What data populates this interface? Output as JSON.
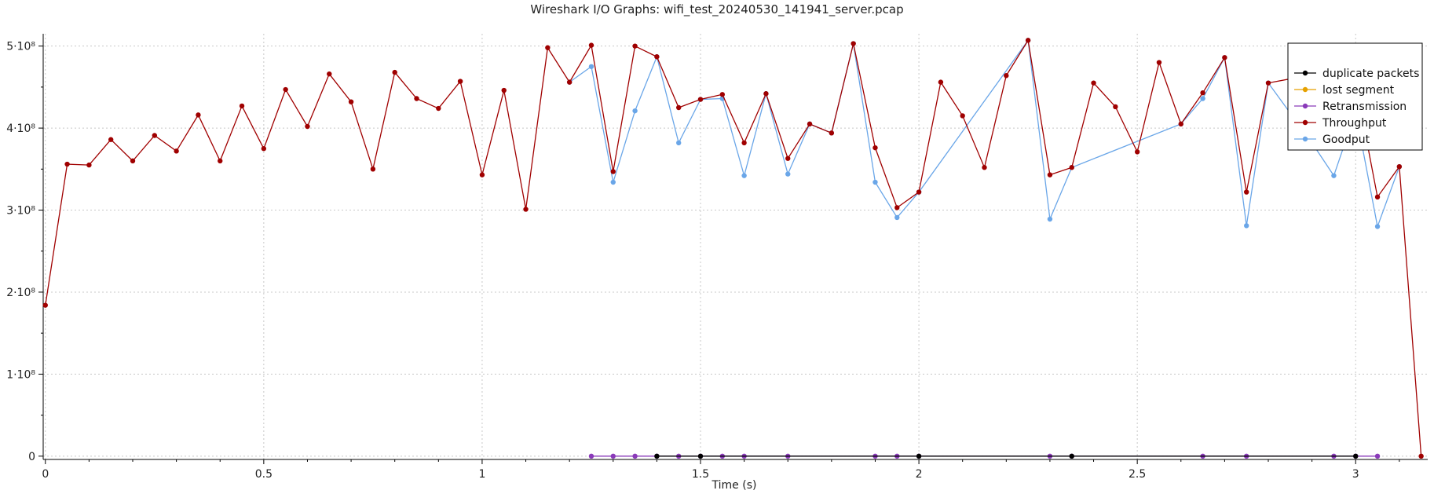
{
  "chart_data": {
    "type": "line",
    "title": "Wireshark I/O Graphs: wifi_test_20240530_141941_server.pcap",
    "xlabel": "Time (s)",
    "ylabel": "",
    "xlim": [
      -0.005,
      3.165
    ],
    "ylim": [
      -4000000.0,
      515000000.0
    ],
    "x_ticks": [
      0,
      0.5,
      1,
      1.5,
      2,
      2.5,
      3
    ],
    "x_tick_labels": [
      "0",
      "0.5",
      "1",
      "1.5",
      "2",
      "2.5",
      "3"
    ],
    "y_ticks": [
      0,
      100000000.0,
      200000000.0,
      300000000.0,
      400000000.0,
      500000000.0
    ],
    "y_tick_labels": [
      "0",
      "1·10⁸",
      "2·10⁸",
      "3·10⁸",
      "4·10⁸",
      "5·10⁸"
    ],
    "grid": true,
    "legend_position": "top-right",
    "series": [
      {
        "name": "duplicate packets",
        "color": "#000000",
        "x": [
          1.4,
          1.5,
          2.0,
          2.35,
          3.0
        ],
        "y": [
          0,
          0,
          0,
          0,
          0
        ]
      },
      {
        "name": "lost segment",
        "color": "#e6a100",
        "x": [],
        "y": []
      },
      {
        "name": "Retransmission",
        "color": "#8a3ab9",
        "x": [
          1.25,
          1.3,
          1.35,
          1.4,
          1.45,
          1.5,
          1.55,
          1.6,
          1.7,
          1.9,
          1.95,
          2.0,
          2.3,
          2.35,
          2.65,
          2.75,
          2.95,
          3.0,
          3.05
        ],
        "y": [
          0,
          0,
          0,
          0,
          0,
          0,
          0,
          0,
          0,
          0,
          0,
          0,
          0,
          0,
          0,
          0,
          0,
          0,
          0
        ]
      },
      {
        "name": "Throughput",
        "color": "#a00000",
        "x": [
          0,
          0.05,
          0.1,
          0.15,
          0.2,
          0.25,
          0.3,
          0.35,
          0.4,
          0.45,
          0.5,
          0.55,
          0.6,
          0.65,
          0.7,
          0.75,
          0.8,
          0.85,
          0.9,
          0.95,
          1.0,
          1.05,
          1.1,
          1.15,
          1.2,
          1.25,
          1.3,
          1.35,
          1.4,
          1.45,
          1.5,
          1.55,
          1.6,
          1.65,
          1.7,
          1.75,
          1.8,
          1.85,
          1.9,
          1.95,
          2.0,
          2.05,
          2.1,
          2.15,
          2.2,
          2.25,
          2.3,
          2.35,
          2.4,
          2.45,
          2.5,
          2.55,
          2.6,
          2.65,
          2.7,
          2.75,
          2.8,
          2.85,
          2.9,
          2.95,
          3.0,
          3.05,
          3.1,
          3.15
        ],
        "y": [
          184000000.0,
          356000000.0,
          355000000.0,
          386000000.0,
          360000000.0,
          391000000.0,
          372000000.0,
          416000000.0,
          360000000.0,
          427000000.0,
          375000000.0,
          447000000.0,
          402000000.0,
          466000000.0,
          432000000.0,
          350000000.0,
          468000000.0,
          436000000.0,
          424000000.0,
          457000000.0,
          343000000.0,
          446000000.0,
          301000000.0,
          498000000.0,
          456000000.0,
          501000000.0,
          347000000.0,
          500000000.0,
          487000000.0,
          425000000.0,
          435000000.0,
          441000000.0,
          382000000.0,
          442000000.0,
          363000000.0,
          405000000.0,
          394000000.0,
          503000000.0,
          376000000.0,
          303000000.0,
          322000000.0,
          456000000.0,
          415000000.0,
          352000000.0,
          464000000.0,
          507000000.0,
          343000000.0,
          352000000.0,
          455000000.0,
          426000000.0,
          371000000.0,
          480000000.0,
          405000000.0,
          443000000.0,
          486000000.0,
          322000000.0,
          455000000.0,
          460000000.0,
          465000000.0,
          460000000.0,
          455000000.0,
          316000000.0,
          353000000.0,
          0.0
        ]
      },
      {
        "name": "Goodput",
        "color": "#6aa6e8",
        "x": [
          1.2,
          1.25,
          1.3,
          1.35,
          1.4,
          1.45,
          1.5,
          1.55,
          1.6,
          1.65,
          1.7,
          1.75,
          1.8,
          1.85,
          1.9,
          1.95,
          2.0,
          2.25,
          2.3,
          2.35,
          2.6,
          2.65,
          2.7,
          2.75,
          2.8,
          2.9,
          2.95,
          3.0,
          3.05,
          3.1
        ],
        "y": [
          456000000.0,
          475000000.0,
          334000000.0,
          421000000.0,
          487000000.0,
          382000000.0,
          435000000.0,
          436000000.0,
          342000000.0,
          442000000.0,
          344000000.0,
          405000000.0,
          394000000.0,
          503000000.0,
          334000000.0,
          291000000.0,
          322000000.0,
          507000000.0,
          289000000.0,
          352000000.0,
          405000000.0,
          436000000.0,
          486000000.0,
          281000000.0,
          455000000.0,
          382000000.0,
          342000000.0,
          420000000.0,
          280000000.0,
          353000000.0
        ]
      }
    ]
  }
}
